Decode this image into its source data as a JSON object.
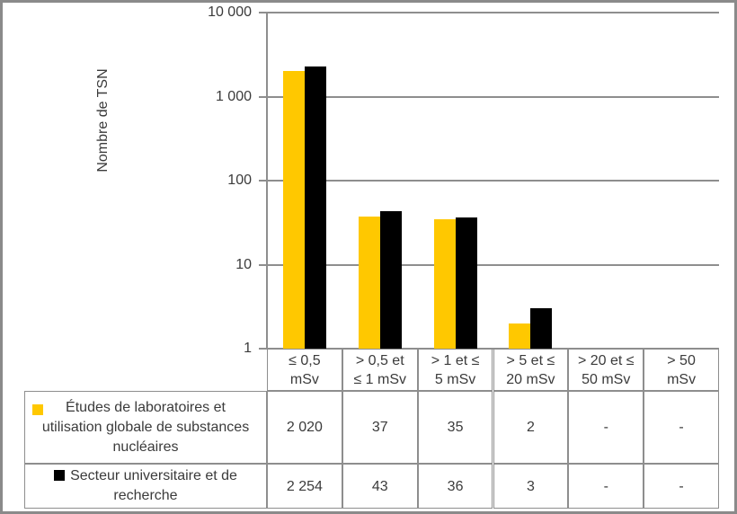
{
  "chart_data": {
    "type": "bar",
    "y_scale": "log",
    "title": "",
    "xlabel": "",
    "ylabel": "Nombre de TSN",
    "ylim": [
      1,
      10000
    ],
    "grid": "major-horizontal",
    "legend_position": "data-table-left",
    "y_ticks": [
      {
        "value": 10000,
        "label": "10 000"
      },
      {
        "value": 1000,
        "label": "1 000"
      },
      {
        "value": 100,
        "label": "100"
      },
      {
        "value": 10,
        "label": "10"
      },
      {
        "value": 1,
        "label": "1"
      }
    ],
    "categories": [
      "≤ 0,5 mSv",
      "> 0,5 et ≤ 1 mSv",
      "> 1 et ≤ 5 mSv",
      "> 5 et ≤ 20 mSv",
      "> 20 et ≤ 50 mSv",
      "> 50 mSv"
    ],
    "categories_wrapped": [
      "≤ 0,5\nmSv",
      "> 0,5 et\n≤ 1 mSv",
      "> 1 et ≤\n5 mSv",
      "> 5 et ≤\n20 mSv",
      "> 20 et ≤\n50 mSv",
      "> 50\nmSv"
    ],
    "series": [
      {
        "name": "Études de laboratoires et utilisation globale de substances nucléaires",
        "name_wrapped": "Études de laboratoires et\nutilisation globale de substances\nnucléaires",
        "color": "#FFC800",
        "values": [
          2020,
          37,
          35,
          2,
          null,
          null
        ],
        "cell_labels": [
          "2 020",
          "37",
          "35",
          "2",
          "-",
          "-"
        ]
      },
      {
        "name": "Secteur universitaire et de recherche",
        "name_wrapped": "Secteur universitaire et de\nrecherche",
        "color": "#000000",
        "values": [
          2254,
          43,
          36,
          3,
          null,
          null
        ],
        "cell_labels": [
          "2 254",
          "43",
          "36",
          "3",
          "-",
          "-"
        ]
      }
    ]
  },
  "colors": {
    "series_1": "#FFC800",
    "series_2": "#000000",
    "gridline": "#8E8E8E",
    "table_border": "#8E8E8E",
    "frame_border": "#8A8A8A",
    "text": "#3B3B3B",
    "background": "#FFFFFF"
  }
}
